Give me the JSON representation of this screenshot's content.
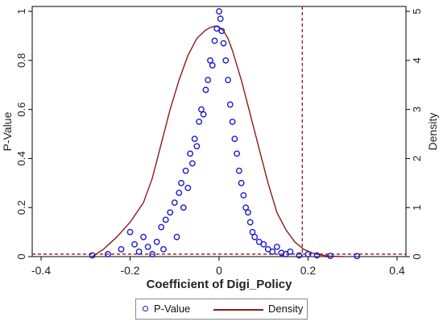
{
  "chart_data": {
    "type": "scatter",
    "xlabel": "Coefficient of Digi_Policy",
    "ylabel_left": "P-Value",
    "ylabel_right": "Density",
    "xlim": [
      -0.42,
      0.42
    ],
    "ylim_left": [
      0,
      1.02
    ],
    "ylim_right": [
      0,
      5.1
    ],
    "x_ticks": [
      "-0.4",
      "-0.2",
      "0",
      "0.2",
      "0.4"
    ],
    "y_left_ticks": [
      "0",
      "0.2",
      "0.4",
      "0.6",
      "0.8",
      "1"
    ],
    "y_right_ticks": [
      "0",
      "1",
      "2",
      "3",
      "4",
      "5"
    ],
    "reference_lines": {
      "vertical_x": 0.187,
      "horizontal_p": 0.01
    },
    "colors": {
      "points": "#1a1acc",
      "density": "#8b1a1a",
      "reference": "#8b1a1a"
    },
    "legend": [
      "P-Value",
      "Density"
    ],
    "series": [
      {
        "name": "P-Value",
        "kind": "scatter",
        "x": [
          -0.285,
          -0.25,
          -0.22,
          -0.2,
          -0.19,
          -0.18,
          -0.17,
          -0.16,
          -0.15,
          -0.14,
          -0.13,
          -0.125,
          -0.12,
          -0.11,
          -0.1,
          -0.095,
          -0.09,
          -0.085,
          -0.08,
          -0.075,
          -0.07,
          -0.065,
          -0.06,
          -0.055,
          -0.05,
          -0.045,
          -0.04,
          -0.035,
          -0.03,
          -0.025,
          -0.02,
          -0.015,
          -0.01,
          -0.005,
          0.0,
          0.003,
          0.006,
          0.01,
          0.015,
          0.02,
          0.025,
          0.03,
          0.035,
          0.04,
          0.045,
          0.05,
          0.055,
          0.06,
          0.065,
          0.07,
          0.075,
          0.08,
          0.09,
          0.1,
          0.11,
          0.12,
          0.13,
          0.14,
          0.15,
          0.16,
          0.18,
          0.2,
          0.22,
          0.25,
          0.31
        ],
        "y": [
          0.005,
          0.01,
          0.03,
          0.1,
          0.05,
          0.02,
          0.08,
          0.04,
          0.01,
          0.06,
          0.12,
          0.03,
          0.15,
          0.18,
          0.22,
          0.08,
          0.26,
          0.3,
          0.2,
          0.35,
          0.28,
          0.42,
          0.38,
          0.48,
          0.45,
          0.55,
          0.6,
          0.58,
          0.68,
          0.72,
          0.8,
          0.78,
          0.88,
          0.93,
          1.0,
          0.97,
          0.92,
          0.87,
          0.8,
          0.72,
          0.62,
          0.55,
          0.48,
          0.42,
          0.35,
          0.3,
          0.25,
          0.2,
          0.18,
          0.14,
          0.1,
          0.08,
          0.06,
          0.05,
          0.03,
          0.02,
          0.04,
          0.015,
          0.01,
          0.02,
          0.005,
          0.01,
          0.005,
          0.003,
          0.002
        ]
      },
      {
        "name": "Density",
        "kind": "line",
        "x": [
          -0.285,
          -0.26,
          -0.23,
          -0.2,
          -0.17,
          -0.15,
          -0.13,
          -0.11,
          -0.09,
          -0.07,
          -0.05,
          -0.03,
          -0.02,
          -0.01,
          0.0,
          0.01,
          0.02,
          0.03,
          0.05,
          0.07,
          0.09,
          0.11,
          0.13,
          0.15,
          0.17,
          0.19,
          0.21,
          0.23,
          0.25,
          0.28
        ],
        "y": [
          0.0,
          0.15,
          0.4,
          0.7,
          1.1,
          1.6,
          2.3,
          3.0,
          3.6,
          4.1,
          4.45,
          4.62,
          4.67,
          4.7,
          4.68,
          4.6,
          4.45,
          4.2,
          3.6,
          2.9,
          2.2,
          1.5,
          0.9,
          0.55,
          0.3,
          0.15,
          0.07,
          0.03,
          0.01,
          0.0
        ]
      }
    ]
  }
}
